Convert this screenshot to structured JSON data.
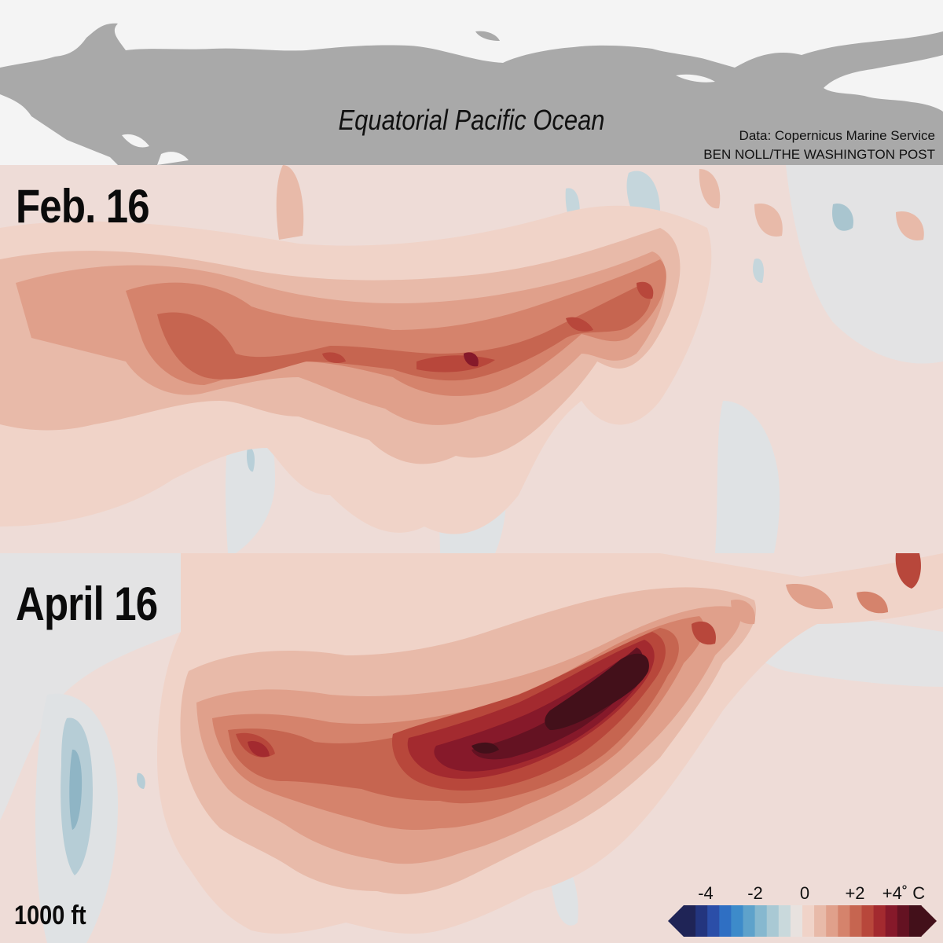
{
  "header": {
    "region_label": "Equatorial Pacific Ocean",
    "source": "Data: Copernicus Marine Service",
    "byline": "BEN NOLL/THE WASHINGTON POST"
  },
  "panels": [
    {
      "date_label": "Feb. 16"
    },
    {
      "date_label": "April 16"
    }
  ],
  "depth_label": "1000 ft",
  "legend": {
    "ticks": [
      "-4",
      "-2",
      "0",
      "+2",
      "+4˚ C"
    ],
    "colors_cool": [
      "#1f2456",
      "#23357e",
      "#2b4ea8",
      "#2f6fc3",
      "#3d8bca",
      "#5ea2cb",
      "#86b8cf",
      "#a9c9d4",
      "#c9d9dc"
    ],
    "colors_warm": [
      "#f0d3c8",
      "#e8baa9",
      "#e0a08b",
      "#d5836c",
      "#c66550",
      "#b8473b",
      "#a32a2f",
      "#86192a",
      "#641222",
      "#43101a"
    ],
    "neutral_color": "#e8e2df"
  },
  "colors": {
    "land": "#f4f4f4",
    "ocean_header": "#a9a9a9",
    "anomaly_background": "#eedcd7",
    "cool_patch": "#c8d8de"
  }
}
